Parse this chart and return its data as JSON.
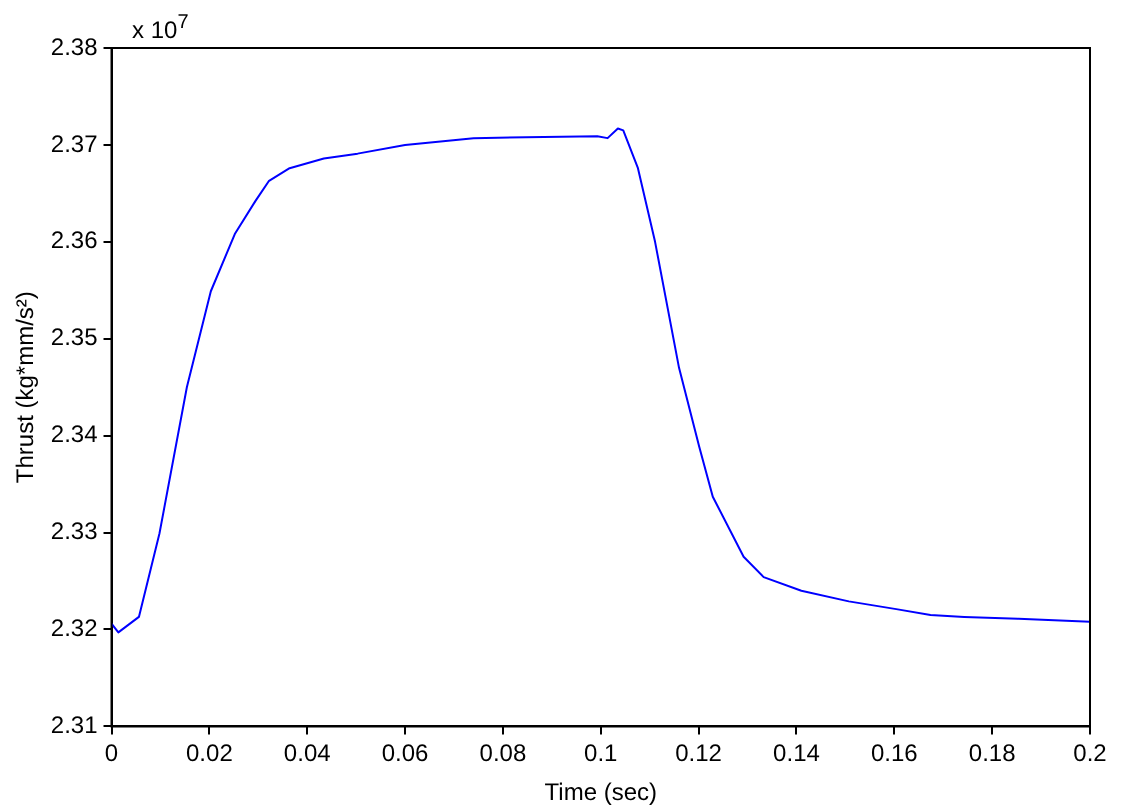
{
  "chart_data": {
    "type": "line",
    "xlabel": "Time (sec)",
    "ylabel": "Thrust (kg*mm/s²)",
    "annotations": [
      "x 10$^{7}$"
    ],
    "x": [
      0,
      0.0014,
      0.0056,
      0.0098,
      0.0154,
      0.0203,
      0.0252,
      0.0294,
      0.0322,
      0.0364,
      0.0434,
      0.0503,
      0.06,
      0.074,
      0.0993,
      0.1014,
      0.1035,
      0.1046,
      0.1076,
      0.1111,
      0.116,
      0.1201,
      0.1229,
      0.1292,
      0.1333,
      0.141,
      0.1507,
      0.1604,
      0.1674,
      0.1743,
      0.1854,
      0.2
    ],
    "series": [
      {
        "color": "#0000ff",
        "values": [
          2.3206,
          2.3197,
          2.3213,
          2.3299,
          2.345,
          2.3549,
          2.3608,
          2.3642,
          2.3663,
          2.3676,
          2.3686,
          2.3691,
          2.37,
          2.3707,
          2.3709,
          2.3707,
          2.3717,
          2.3715,
          2.3676,
          2.36,
          2.347,
          2.3389,
          2.3337,
          2.3275,
          2.3254,
          2.324,
          2.3229,
          2.3221,
          2.3215,
          2.3213,
          2.3211,
          2.3208
        ]
      }
    ],
    "xlim": [
      0,
      0.2
    ],
    "xticks": [
      0,
      0.02,
      0.04,
      0.06,
      0.08,
      0.1,
      0.12,
      0.14,
      0.16,
      0.18,
      0.2
    ],
    "ylim": [
      2.31,
      2.38
    ],
    "yticks": [
      2.31,
      2.32,
      2.33,
      2.34,
      2.35,
      2.36,
      2.37,
      2.38
    ],
    "grid": false,
    "legend": false,
    "marker": "none",
    "line_style": "solid"
  }
}
